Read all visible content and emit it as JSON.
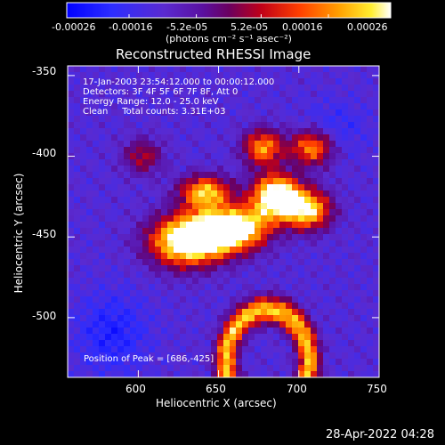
{
  "colorbar": {
    "ticks": [
      "-0.00026",
      "-0.00016",
      "-5.2e-05",
      "5.2e-05",
      "0.00016",
      "0.00026"
    ],
    "unit_label": "(photons cm⁻² s⁻¹ asec⁻²)",
    "range": [
      -0.00026,
      0.00026
    ]
  },
  "chart_data": {
    "type": "heatmap",
    "title": "Reconstructed RHESSI Image",
    "xlabel": "Heliocentric X (arcsec)",
    "ylabel": "Heliocentric Y (arcsec)",
    "xlim": [
      556,
      750
    ],
    "ylim": [
      -537,
      -344
    ],
    "xticks": [
      600,
      650,
      700,
      750
    ],
    "yticks": [
      -350,
      -400,
      -450,
      -500
    ],
    "value_range": [
      -0.00026,
      0.00026
    ],
    "peak": {
      "x": 686,
      "y": -425
    },
    "info": [
      "17-Jan-2003 23:54:12.000 to 00:00:12.000",
      "Detectors: 3F 4F 5F 6F 7F 8F, Att 0",
      "Energy Range: 12.0 - 25.0 keV",
      "Clean     Total counts: 3.31E+03"
    ],
    "peak_label": "Position of Peak = [686,-425]"
  },
  "footer": {
    "timestamp": "28-Apr-2022 04:28"
  }
}
